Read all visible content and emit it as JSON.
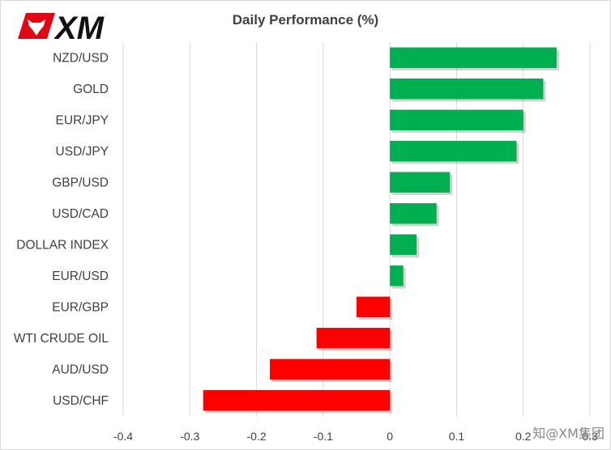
{
  "brand": {
    "logo_text": "XM",
    "watermark": "知@XM集团",
    "logo_color": "#e30613"
  },
  "chart_data": {
    "type": "bar",
    "orientation": "horizontal",
    "title": "Daily Performance (%)",
    "categories": [
      "NZD/USD",
      "GOLD",
      "EUR/JPY",
      "USD/JPY",
      "GBP/USD",
      "USD/CAD",
      "DOLLAR INDEX",
      "EUR/USD",
      "EUR/GBP",
      "WTI CRUDE OIL",
      "AUD/USD",
      "USD/CHF"
    ],
    "values": [
      0.25,
      0.23,
      0.2,
      0.19,
      0.09,
      0.07,
      0.04,
      0.02,
      -0.05,
      -0.11,
      -0.18,
      -0.28
    ],
    "xlim": [
      -0.4,
      0.3
    ],
    "xticks": [
      -0.4,
      -0.3,
      -0.2,
      -0.1,
      0,
      0.1,
      0.2,
      0.3
    ],
    "xtick_labels": [
      "-0.4",
      "-0.3",
      "-0.2",
      "-0.1",
      "0",
      "0.1",
      "0.2",
      "0.3"
    ],
    "grid": "vertical",
    "colors": {
      "positive": "#00b050",
      "negative": "#ff0000",
      "grid": "#d9d9d9",
      "text": "#404040"
    }
  }
}
